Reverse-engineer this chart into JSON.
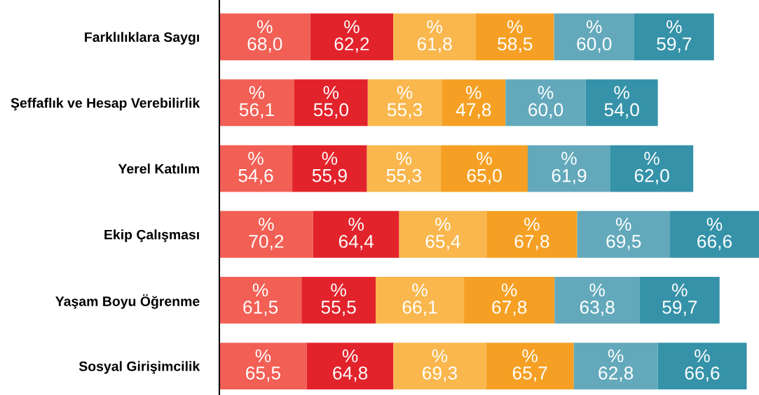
{
  "chart_data": {
    "type": "bar",
    "orientation": "horizontal",
    "stacked": true,
    "grid": false,
    "legend": false,
    "tick_labels": "y",
    "categories": [
      "Farklılıklara Saygı",
      "Şeffaflık ve Hesap Verebilirlik",
      "Yerel Katılım",
      "Ekip Çalışması",
      "Yaşam Boyu Öğrenme",
      "Sosyal Girişimcilik"
    ],
    "series": [
      {
        "color": "#f25f55",
        "values": [
          68.0,
          56.1,
          54.6,
          70.2,
          61.5,
          65.5
        ],
        "value_labels": [
          "%\n68,0",
          "%\n56,1",
          "%\n54,6",
          "%\n70,2",
          "%\n61,5",
          "%\n65,5"
        ]
      },
      {
        "color": "#e2232b",
        "values": [
          62.2,
          55.0,
          55.9,
          64.4,
          55.5,
          64.8
        ],
        "value_labels": [
          "%\n62,2",
          "%\n55,0",
          "%\n55,9",
          "%\n64,4",
          "%\n55,5",
          "%\n64,8"
        ]
      },
      {
        "color": "#f9b74e",
        "values": [
          61.8,
          55.3,
          55.3,
          65.4,
          66.1,
          69.3
        ],
        "value_labels": [
          "%\n61,8",
          "%\n55,3",
          "%\n55,3",
          "%\n65,4",
          "%\n66,1",
          "%\n69,3"
        ]
      },
      {
        "color": "#f5a024",
        "values": [
          58.5,
          47.8,
          65.0,
          67.8,
          67.8,
          65.7
        ],
        "value_labels": [
          "%\n58,5",
          "%\n47,8",
          "%\n65,0",
          "%\n67,8",
          "%\n67,8",
          "%\n65,7"
        ]
      },
      {
        "color": "#63a9bb",
        "values": [
          60.0,
          60.0,
          61.9,
          69.5,
          63.8,
          62.8
        ],
        "value_labels": [
          "%\n60,0",
          "%\n60,0",
          "%\n61,9",
          "%\n69,5",
          "%\n63,8",
          "%\n62,8"
        ]
      },
      {
        "color": "#3592a8",
        "values": [
          59.7,
          54.0,
          62.0,
          66.6,
          59.7,
          66.6
        ],
        "value_labels": [
          "%\n59,7",
          "%\n54,0",
          "%\n62,0",
          "%\n66,6",
          "%\n59,7",
          "%\n66,6"
        ]
      }
    ]
  }
}
